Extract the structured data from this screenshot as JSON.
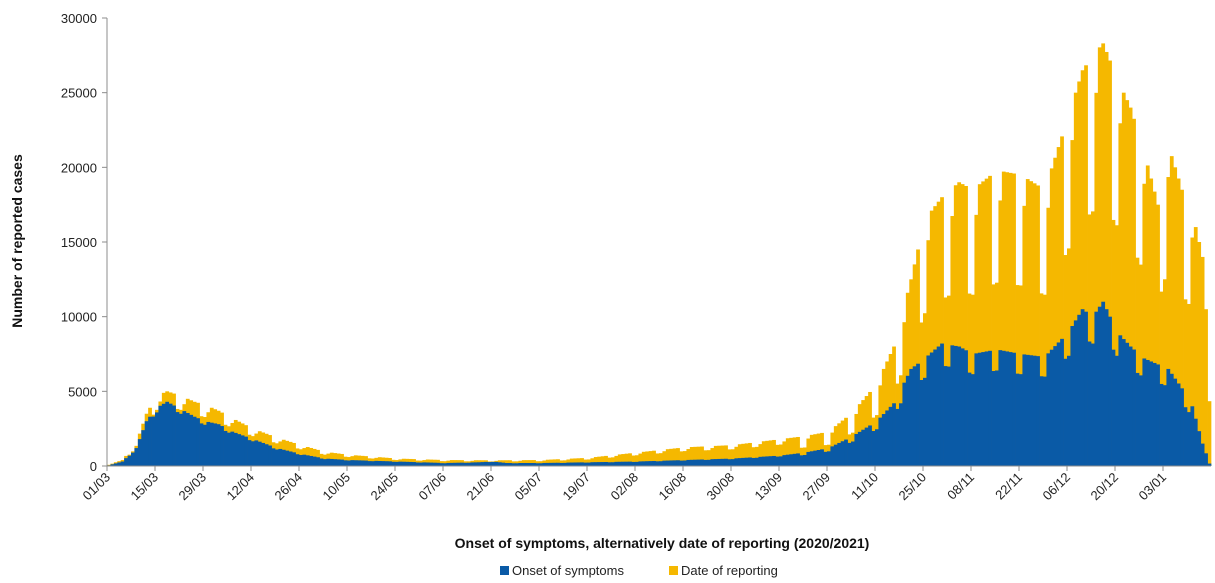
{
  "chart_data": {
    "type": "bar",
    "stacked": true,
    "title": "",
    "xlabel": "Onset of symptoms, alternatively date of reporting (2020/2021)",
    "ylabel": "Number of reported cases",
    "ylim": [
      0,
      30000
    ],
    "yticks": [
      0,
      5000,
      10000,
      15000,
      20000,
      25000,
      30000
    ],
    "x_range": [
      "2020-03-01",
      "2021-01-17"
    ],
    "xtick_labels": [
      "01/03",
      "15/03",
      "29/03",
      "12/04",
      "26/04",
      "10/05",
      "24/05",
      "07/06",
      "21/06",
      "05/07",
      "19/07",
      "02/08",
      "16/08",
      "30/08",
      "13/09",
      "27/09",
      "11/10",
      "25/10",
      "08/11",
      "22/11",
      "06/12",
      "20/12",
      "03/01"
    ],
    "grid": false,
    "legend_position": "bottom-center",
    "series": [
      {
        "name": "Onset of symptoms",
        "color": "#0a5aa6",
        "points": [
          [
            "2020-03-01",
            50
          ],
          [
            "2020-03-05",
            300
          ],
          [
            "2020-03-09",
            1200
          ],
          [
            "2020-03-12",
            3000
          ],
          [
            "2020-03-15",
            3900
          ],
          [
            "2020-03-18",
            4300
          ],
          [
            "2020-03-22",
            3800
          ],
          [
            "2020-03-26",
            3300
          ],
          [
            "2020-03-29",
            3000
          ],
          [
            "2020-04-02",
            2800
          ],
          [
            "2020-04-06",
            2300
          ],
          [
            "2020-04-12",
            1800
          ],
          [
            "2020-04-19",
            1200
          ],
          [
            "2020-04-26",
            800
          ],
          [
            "2020-05-03",
            500
          ],
          [
            "2020-05-10",
            400
          ],
          [
            "2020-05-24",
            300
          ],
          [
            "2020-06-07",
            200
          ],
          [
            "2020-06-17",
            250
          ],
          [
            "2020-06-21",
            300
          ],
          [
            "2020-06-25",
            200
          ],
          [
            "2020-07-05",
            200
          ],
          [
            "2020-07-19",
            250
          ],
          [
            "2020-08-02",
            300
          ],
          [
            "2020-08-16",
            400
          ],
          [
            "2020-08-30",
            500
          ],
          [
            "2020-09-13",
            700
          ],
          [
            "2020-09-20",
            900
          ],
          [
            "2020-09-27",
            1200
          ],
          [
            "2020-10-04",
            2000
          ],
          [
            "2020-10-11",
            3000
          ],
          [
            "2020-10-16",
            4200
          ],
          [
            "2020-10-21",
            6500
          ],
          [
            "2020-10-25",
            7200
          ],
          [
            "2020-10-30",
            8200
          ],
          [
            "2020-11-04",
            8000
          ],
          [
            "2020-11-08",
            7500
          ],
          [
            "2020-11-15",
            7800
          ],
          [
            "2020-11-22",
            7500
          ],
          [
            "2020-11-29",
            7300
          ],
          [
            "2020-12-06",
            9000
          ],
          [
            "2020-12-10",
            10500
          ],
          [
            "2020-12-13",
            10000
          ],
          [
            "2020-12-16",
            11000
          ],
          [
            "2020-12-20",
            9000
          ],
          [
            "2020-12-24",
            8000
          ],
          [
            "2020-12-28",
            7200
          ],
          [
            "2021-01-01",
            6800
          ],
          [
            "2021-01-04",
            6500
          ],
          [
            "2021-01-08",
            5200
          ],
          [
            "2021-01-11",
            4000
          ],
          [
            "2021-01-14",
            1500
          ],
          [
            "2021-01-16",
            200
          ]
        ]
      },
      {
        "name": "Date of reporting",
        "color": "#f5b800",
        "points": [
          [
            "2020-03-01",
            100
          ],
          [
            "2020-03-05",
            400
          ],
          [
            "2020-03-09",
            1500
          ],
          [
            "2020-03-12",
            3500
          ],
          [
            "2020-03-15",
            4700
          ],
          [
            "2020-03-18",
            5000
          ],
          [
            "2020-03-22",
            4700
          ],
          [
            "2020-03-26",
            4300
          ],
          [
            "2020-03-29",
            4100
          ],
          [
            "2020-04-02",
            3700
          ],
          [
            "2020-04-06",
            3200
          ],
          [
            "2020-04-12",
            2500
          ],
          [
            "2020-04-19",
            1900
          ],
          [
            "2020-04-26",
            1400
          ],
          [
            "2020-05-03",
            950
          ],
          [
            "2020-05-10",
            750
          ],
          [
            "2020-05-24",
            500
          ],
          [
            "2020-06-07",
            400
          ],
          [
            "2020-06-21",
            380
          ],
          [
            "2020-07-05",
            400
          ],
          [
            "2020-07-19",
            550
          ],
          [
            "2020-08-02",
            900
          ],
          [
            "2020-08-16",
            1250
          ],
          [
            "2020-08-30",
            1400
          ],
          [
            "2020-09-13",
            1800
          ],
          [
            "2020-09-20",
            2000
          ],
          [
            "2020-09-27",
            2300
          ],
          [
            "2020-10-04",
            3600
          ],
          [
            "2020-10-11",
            5500
          ],
          [
            "2020-10-16",
            8000
          ],
          [
            "2020-10-21",
            12500
          ],
          [
            "2020-10-25",
            16500
          ],
          [
            "2020-10-30",
            18000
          ],
          [
            "2020-11-04",
            19000
          ],
          [
            "2020-11-08",
            18500
          ],
          [
            "2020-11-15",
            19800
          ],
          [
            "2020-11-22",
            19500
          ],
          [
            "2020-11-29",
            18500
          ],
          [
            "2020-12-06",
            23500
          ],
          [
            "2020-12-10",
            26500
          ],
          [
            "2020-12-13",
            27500
          ],
          [
            "2020-12-16",
            28300
          ],
          [
            "2020-12-20",
            26000
          ],
          [
            "2020-12-24",
            24000
          ],
          [
            "2020-12-28",
            21000
          ],
          [
            "2021-01-01",
            17500
          ],
          [
            "2021-01-04",
            21500
          ],
          [
            "2021-01-08",
            18500
          ],
          [
            "2021-01-11",
            17000
          ],
          [
            "2021-01-14",
            14000
          ],
          [
            "2021-01-16",
            7000
          ]
        ]
      }
    ]
  }
}
